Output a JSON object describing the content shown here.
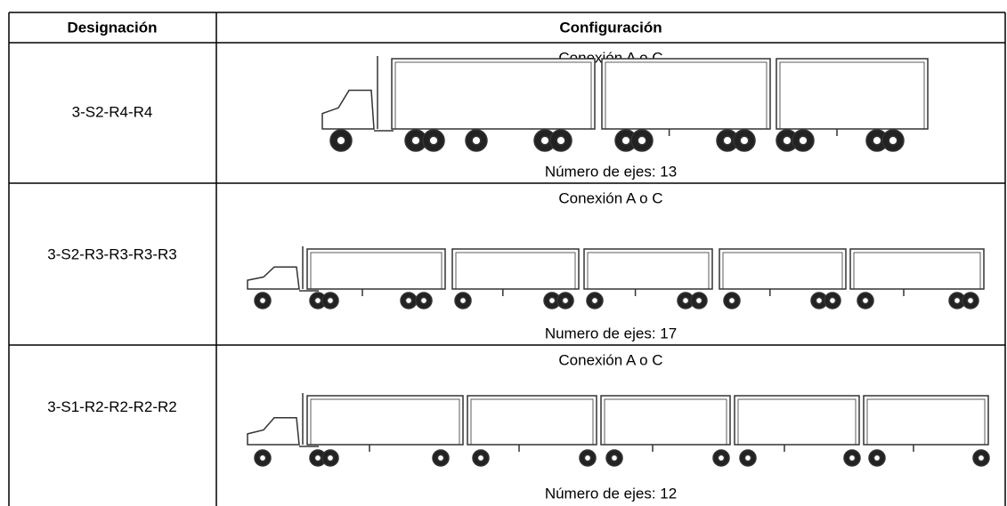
{
  "table": {
    "header": [
      "Designación",
      "Configuración"
    ],
    "rows": [
      {
        "designation": "3-S2-R4-R4",
        "connection": "Conexión A o C",
        "axles": "Número de ejes: 13"
      },
      {
        "designation": "3-S2-R3-R3-R3-R3",
        "connection": "Conexión A o C",
        "axles": "Numero de ejes: 17"
      },
      {
        "designation": "3-S1-R2-R2-R2-R2",
        "connection": "Conexión A o C",
        "axles": "Número de ejes: 12"
      }
    ]
  }
}
